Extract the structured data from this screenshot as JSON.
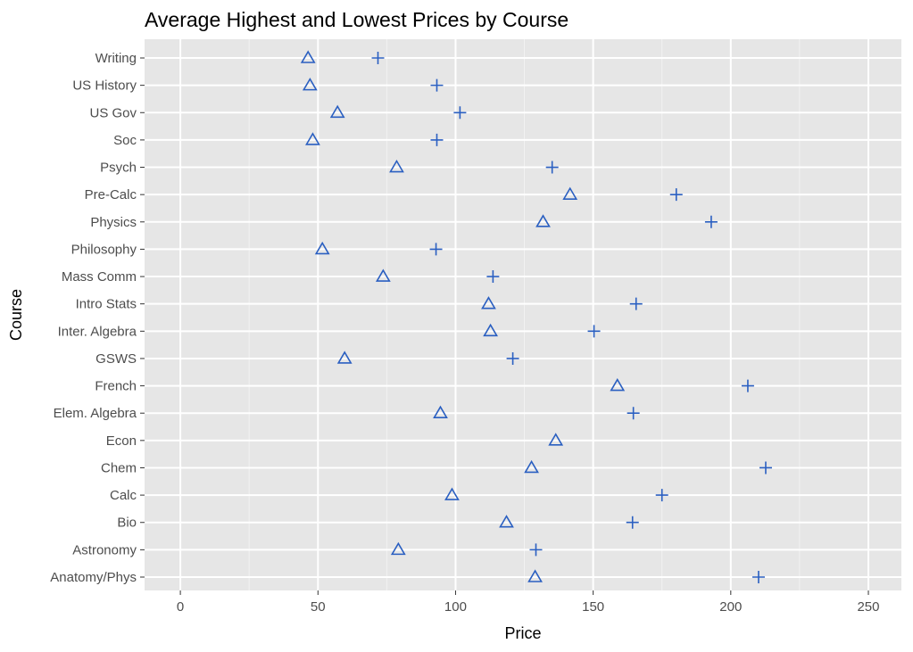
{
  "chart_data": {
    "type": "scatter",
    "title": "Average Highest and Lowest Prices by Course",
    "xlabel": "Price",
    "ylabel": "Course",
    "xlim": [
      -13,
      262
    ],
    "xticks": [
      0,
      50,
      100,
      150,
      200,
      250
    ],
    "grid": true,
    "marker_color": "#2a5fc1",
    "categories": [
      "Anatomy/Phys",
      "Astronomy",
      "Bio",
      "Calc",
      "Chem",
      "Econ",
      "Elem. Algebra",
      "French",
      "GSWS",
      "Inter. Algebra",
      "Intro Stats",
      "Mass Comm",
      "Philosophy",
      "Physics",
      "Pre-Calc",
      "Psych",
      "Soc",
      "US Gov",
      "US History",
      "Writing"
    ],
    "series": [
      {
        "marker": "triangle",
        "values": [
          128.9,
          79.2,
          118.5,
          98.7,
          127.6,
          136.4,
          94.5,
          158.8,
          59.7,
          112.7,
          112,
          73.7,
          51.6,
          131.8,
          141.6,
          78.6,
          48.1,
          57.1,
          47.1,
          46.4
        ]
      },
      {
        "marker": "plus",
        "values": [
          210.1,
          129.2,
          164.3,
          175,
          212.7,
          null,
          164.6,
          206.2,
          120.8,
          150.3,
          165.6,
          113.6,
          92.9,
          192.9,
          180.2,
          135.1,
          93.2,
          101.6,
          93.2,
          71.8
        ]
      }
    ]
  }
}
